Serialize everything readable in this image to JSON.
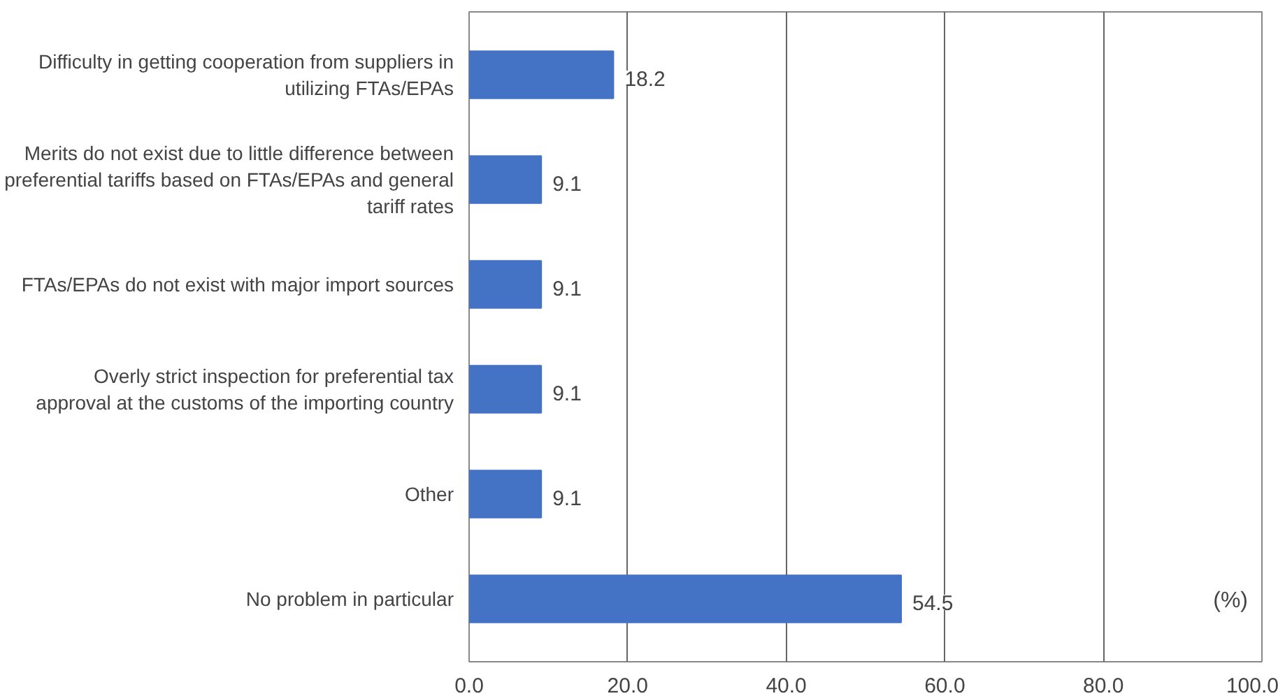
{
  "chart_data": {
    "type": "bar",
    "orientation": "horizontal",
    "categories": [
      "Difficulty in getting cooperation from suppliers in utilizing FTAs/EPAs",
      "Merits do not exist due to little difference between preferential tariffs based on FTAs/EPAs and general tariff rates",
      "FTAs/EPAs do not exist with major import sources",
      "Overly strict inspection for preferential tax approval at the customs of the importing country",
      "Other",
      "No problem in particular"
    ],
    "values": [
      18.2,
      9.1,
      9.1,
      9.1,
      9.1,
      54.5
    ],
    "color": "#4472c4",
    "xlim": [
      0,
      100
    ],
    "xticks": [
      {
        "value": 0,
        "label": "0.0"
      },
      {
        "value": 20,
        "label": "20.0"
      },
      {
        "value": 40,
        "label": "40.0"
      },
      {
        "value": 60,
        "label": "60.0"
      },
      {
        "value": 80,
        "label": "80.0"
      },
      {
        "value": 100,
        "label": "100.0"
      }
    ],
    "grid": "x",
    "data_labels": true,
    "annotations": [
      "(%)"
    ]
  }
}
